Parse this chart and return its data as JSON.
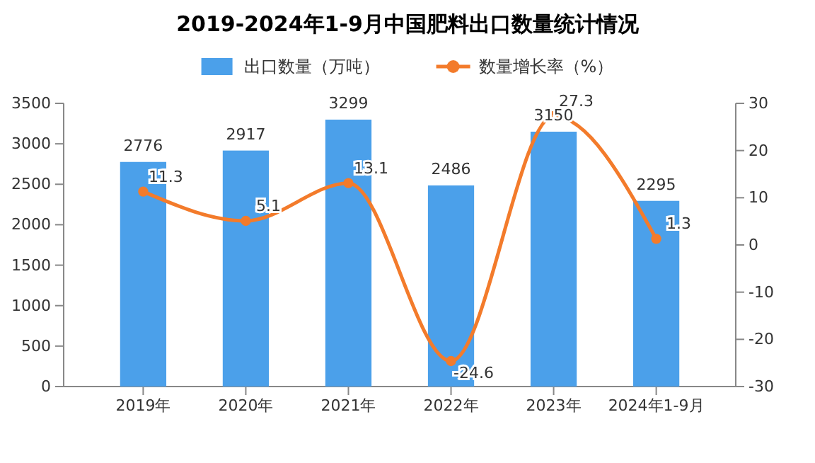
{
  "chart_data": {
    "type": "bar",
    "title": "2019-2024年1-9月中国肥料出口数量统计情况",
    "categories": [
      "2019年",
      "2020年",
      "2021年",
      "2022年",
      "2023年",
      "2024年1-9月"
    ],
    "series": [
      {
        "name": "出口数量（万吨）",
        "color": "#4ba0ea",
        "values": [
          2776,
          2917,
          3299,
          2486,
          3150,
          2295
        ]
      },
      {
        "name": "数量增长率（%）",
        "type": "line",
        "axis": "y2",
        "color": "#f37b2b",
        "marker": "circle",
        "values": [
          11.3,
          5.1,
          13.1,
          -24.6,
          27.3,
          1.3
        ]
      }
    ],
    "ylim": [
      0,
      3500
    ],
    "yticks": [
      0,
      500,
      1000,
      1500,
      2000,
      2500,
      3000,
      3500
    ],
    "y2lim": [
      -30,
      30
    ],
    "y2ticks": [
      -30,
      -20,
      -10,
      0,
      10,
      20,
      30
    ],
    "data_labels": true,
    "legend": "top",
    "grid": false
  }
}
